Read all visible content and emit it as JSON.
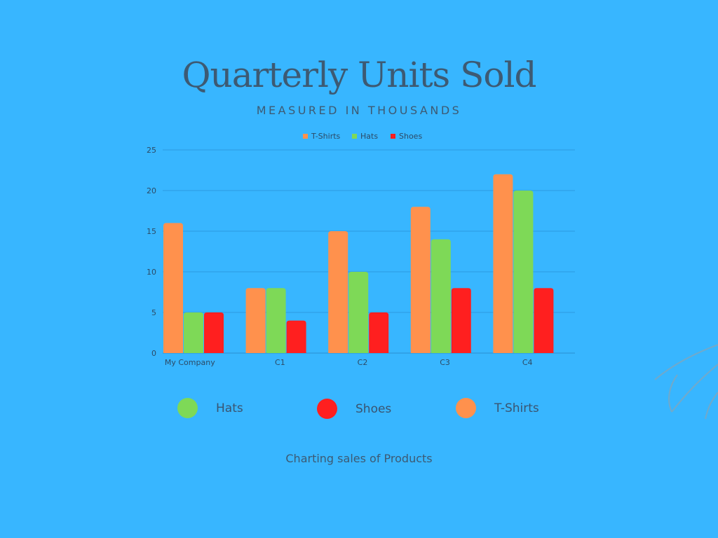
{
  "title": "Quarterly Units Sold",
  "subtitle": "MEASURED IN THOUSANDS",
  "caption": "Charting sales of Products",
  "big_legend": [
    {
      "label": "Hats",
      "color": "#7ed957"
    },
    {
      "label": "Shoes",
      "color": "#ff1f1f"
    },
    {
      "label": "T-Shirts",
      "color": "#ff914d"
    }
  ],
  "chart_data": {
    "type": "bar",
    "categories": [
      "My Company",
      "C1",
      "C2",
      "C3",
      "C4"
    ],
    "series": [
      {
        "name": "T-Shirts",
        "color": "#ff914d",
        "values": [
          16,
          8,
          15,
          18,
          22
        ]
      },
      {
        "name": "Hats",
        "color": "#7ed957",
        "values": [
          5,
          8,
          10,
          14,
          20
        ]
      },
      {
        "name": "Shoes",
        "color": "#ff1f1f",
        "values": [
          5,
          4,
          5,
          8,
          8
        ]
      }
    ],
    "ylim": [
      0,
      25
    ],
    "yticks": [
      0,
      5,
      10,
      15,
      20,
      25
    ],
    "grid": true,
    "legend": "top"
  }
}
